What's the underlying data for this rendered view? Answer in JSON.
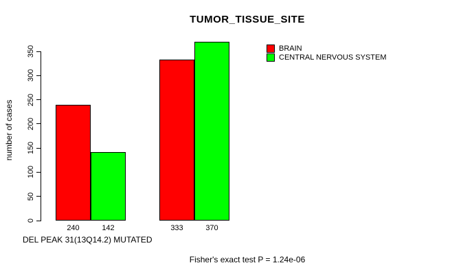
{
  "chart_data": {
    "type": "bar",
    "title": "TUMOR_TISSUE_SITE",
    "ylabel": "number of cases",
    "xlabel": "DEL PEAK 31(13Q14.2) MUTATED",
    "annotation": "Fisher's exact test P = 1.24e-06",
    "categories": [
      "",
      ""
    ],
    "series": [
      {
        "name": "BRAIN",
        "color": "#ff0000",
        "values": [
          240,
          333
        ]
      },
      {
        "name": "CENTRAL NERVOUS SYSTEM",
        "color": "#00ff00",
        "values": [
          142,
          370
        ]
      }
    ],
    "ylim": [
      0,
      350
    ],
    "yticks": [
      0,
      50,
      100,
      150,
      200,
      250,
      300,
      350
    ],
    "bar_value_labels_shown": true,
    "legend_position": "top-right",
    "grid": false,
    "background": "#ffffff",
    "axis_color": "#000000"
  }
}
